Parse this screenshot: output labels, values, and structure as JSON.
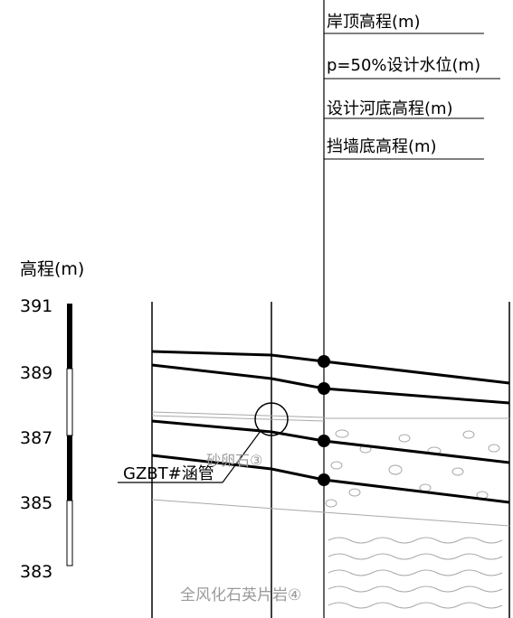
{
  "legend_rows": [
    "岸顶高程(m)",
    "p=50%设计水位(m)",
    "设计河底高程(m)",
    "挡墙底高程(m)"
  ],
  "elevation_scale": {
    "title": "高程(m)",
    "ticks": [
      "391",
      "389",
      "387",
      "385",
      "383"
    ]
  },
  "pipe_label": "GZBT#涵管",
  "stratum_labels": {
    "upper": "砂卵石③",
    "lower": "全风化石英片岩④"
  },
  "colors": {
    "line": "#000000",
    "faint_line": "#a0a0a0",
    "faint_text": "#9a9a9a"
  }
}
